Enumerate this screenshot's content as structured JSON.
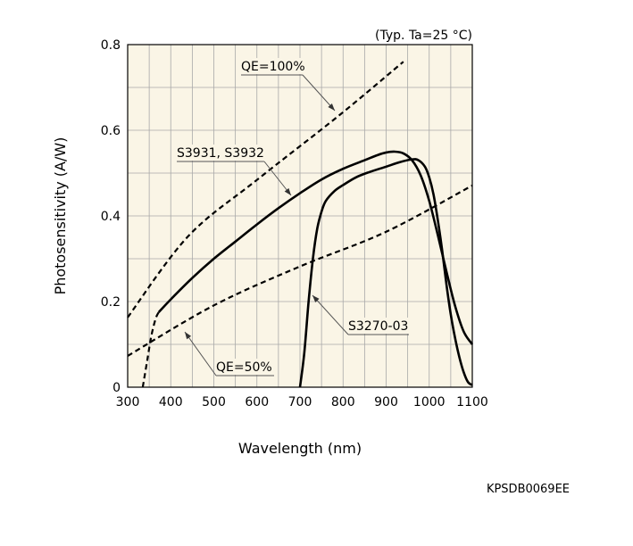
{
  "chart_data": {
    "type": "line",
    "condition": "(Typ. Ta=25 °C)",
    "xlabel": "Wavelength (nm)",
    "ylabel": "Photosensitivity (A/W)",
    "xlim": [
      300,
      1100
    ],
    "ylim": [
      0,
      0.8
    ],
    "xticks": [
      300,
      400,
      500,
      600,
      700,
      800,
      900,
      1000,
      1100
    ],
    "yticks": [
      0,
      0.2,
      0.4,
      0.6,
      0.8
    ],
    "ytick_labels": [
      "0",
      "0.2",
      "0.4",
      "0.6",
      "0.8"
    ],
    "grid": true,
    "series": [
      {
        "name": "S3931, S3932",
        "style": "solid",
        "segments": [
          {
            "style": "dashed",
            "x": [
              335,
              345,
              355,
              365,
              372
            ],
            "y": [
              0.0,
              0.06,
              0.12,
              0.16,
              0.175
            ]
          },
          {
            "style": "solid",
            "x": [
              372,
              400,
              450,
              500,
              550,
              600,
              650,
              700,
              750,
              800,
              850,
              880,
              900,
              920,
              940,
              960,
              980,
              1000,
              1020,
              1040,
              1060,
              1080,
              1100
            ],
            "y": [
              0.175,
              0.205,
              0.255,
              0.3,
              0.34,
              0.38,
              0.418,
              0.453,
              0.485,
              0.51,
              0.53,
              0.542,
              0.548,
              0.55,
              0.546,
              0.53,
              0.495,
              0.435,
              0.355,
              0.27,
              0.19,
              0.13,
              0.1
            ]
          }
        ]
      },
      {
        "name": "S3270-03",
        "style": "solid",
        "x": [
          700,
          710,
          720,
          730,
          740,
          750,
          760,
          780,
          800,
          830,
          860,
          900,
          930,
          960,
          975,
          990,
          1000,
          1010,
          1020,
          1030,
          1040,
          1050,
          1060,
          1070,
          1080,
          1090,
          1100
        ],
        "y": [
          0.0,
          0.08,
          0.2,
          0.3,
          0.37,
          0.41,
          0.435,
          0.458,
          0.472,
          0.49,
          0.502,
          0.515,
          0.525,
          0.532,
          0.53,
          0.515,
          0.49,
          0.45,
          0.39,
          0.32,
          0.24,
          0.17,
          0.115,
          0.07,
          0.035,
          0.012,
          0.005
        ]
      },
      {
        "name": "QE=100%",
        "style": "dashed",
        "x": [
          300,
          440,
          600,
          790,
          940
        ],
        "y": [
          0.163,
          0.352,
          0.484,
          0.634,
          0.76
        ]
      },
      {
        "name": "QE=50%",
        "style": "dashed",
        "x": [
          300,
          500,
          700,
          900,
          1100
        ],
        "y": [
          0.073,
          0.191,
          0.282,
          0.363,
          0.471
        ]
      }
    ],
    "annotations": [
      {
        "text": "QE=100%",
        "series": "QE=100%"
      },
      {
        "text": "S3931, S3932",
        "series": "S3931, S3932"
      },
      {
        "text": "S3270-03",
        "series": "S3270-03"
      },
      {
        "text": "QE=50%",
        "series": "QE=50%"
      }
    ],
    "code": "KPSDB0069EE"
  }
}
